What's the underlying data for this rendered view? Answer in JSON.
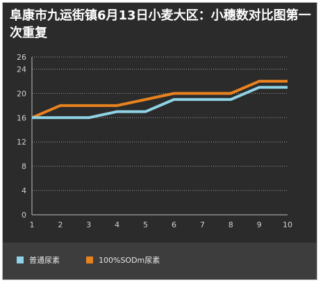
{
  "chart_data": {
    "type": "line",
    "title": "阜康市九运街镇6月13日小麦大区：小穗数对比图第一次重复",
    "xlabel": "",
    "ylabel": "",
    "x": [
      1,
      2,
      3,
      4,
      5,
      6,
      7,
      8,
      9,
      10
    ],
    "xlim": [
      1,
      10
    ],
    "ylim": [
      0,
      26
    ],
    "yticks": [
      0,
      4,
      8,
      12,
      16,
      20,
      24,
      26
    ],
    "grid": "horizontal dotted",
    "legend_position": "bottom",
    "series": [
      {
        "name": "普通尿素",
        "color": "#8fd3e6",
        "values": [
          16,
          16,
          16,
          17,
          17,
          19,
          19,
          19,
          21,
          21
        ]
      },
      {
        "name": "100%SODm尿素",
        "color": "#e8821e",
        "values": [
          16,
          18,
          18,
          18,
          19,
          20,
          20,
          20,
          22,
          22
        ]
      }
    ]
  }
}
